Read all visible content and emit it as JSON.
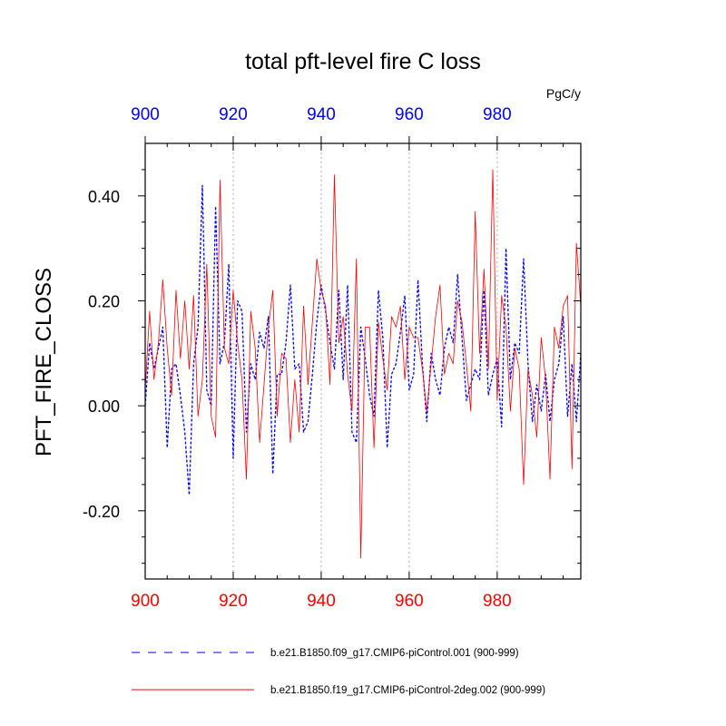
{
  "colors": {
    "series1": "#0000ff",
    "series2": "#ff0000",
    "top_axis": "#0000ff",
    "bottom_axis": "#ff0000",
    "grid": "#b0b0b0"
  },
  "chart_data": {
    "type": "line",
    "title": "total pft-level fire C loss",
    "units": "PgC/y",
    "ylabel": "PFT_FIRE_CLOSS",
    "xlabel": "",
    "xlim": [
      900,
      999
    ],
    "ylim": [
      -0.33,
      0.5
    ],
    "grid": "vertical dotted lines at top-axis ticks",
    "x_ticks": [
      900,
      920,
      940,
      960,
      980
    ],
    "x_tick_labels": [
      "900",
      "920",
      "940",
      "960",
      "980"
    ],
    "top_x_ticks": [
      900,
      920,
      940,
      960,
      980
    ],
    "top_x_tick_labels": [
      "900",
      "920",
      "940",
      "960",
      "980"
    ],
    "y_ticks": [
      0.4,
      0.2,
      0.0,
      -0.2
    ],
    "y_tick_labels": [
      "0.40",
      "0.20",
      "0.00",
      "-0.20"
    ],
    "legend_position": "bottom",
    "series": [
      {
        "name": "b.e21.B1850.f09_g17.CMIP6-piControl.001 (900-999)",
        "style": "dashed",
        "x_start": 900,
        "values": [
          0.0,
          0.12,
          0.07,
          0.11,
          0.15,
          -0.08,
          0.07,
          0.08,
          0.02,
          -0.05,
          -0.17,
          0.08,
          0.15,
          0.42,
          0.03,
          0.0,
          0.38,
          0.08,
          0.12,
          0.27,
          -0.1,
          0.2,
          0.18,
          -0.05,
          0.08,
          0.05,
          0.14,
          0.11,
          0.17,
          -0.13,
          0.06,
          0.06,
          0.12,
          0.23,
          0.07,
          0.08,
          -0.05,
          -0.03,
          0.06,
          0.16,
          0.23,
          0.18,
          0.12,
          0.07,
          0.22,
          0.05,
          0.23,
          -0.05,
          -0.07,
          0.15,
          0.09,
          0.02,
          -0.02,
          0.22,
          0.13,
          -0.08,
          0.06,
          0.08,
          0.14,
          0.21,
          0.03,
          0.06,
          0.24,
          0.08,
          -0.03,
          0.1,
          0.05,
          0.02,
          0.11,
          0.15,
          0.12,
          0.25,
          0.13,
          0.01,
          0.04,
          0.07,
          0.05,
          0.22,
          0.02,
          0.06,
          0.09,
          -0.04,
          0.3,
          0.05,
          0.12,
          0.1,
          0.28,
          0.08,
          -0.03,
          0.04,
          -0.01,
          0.06,
          -0.03,
          0.05,
          0.08,
          0.17,
          -0.02,
          0.08,
          -0.03,
          0.1
        ]
      },
      {
        "name": "b.e21.B1850.f19_g17.CMIP6-piControl-2deg.002 (900-999)",
        "style": "solid",
        "x_start": 900,
        "values": [
          0.03,
          0.18,
          0.05,
          0.12,
          0.24,
          0.11,
          0.02,
          0.22,
          0.09,
          0.2,
          0.07,
          0.21,
          -0.02,
          0.05,
          0.27,
          -0.02,
          -0.06,
          0.43,
          0.11,
          0.08,
          0.22,
          0.12,
          0.05,
          -0.14,
          0.18,
          0.11,
          -0.07,
          0.04,
          0.15,
          0.22,
          -0.02,
          0.1,
          0.09,
          -0.07,
          0.05,
          -0.05,
          0.19,
          0.04,
          0.16,
          0.28,
          0.22,
          0.19,
          0.04,
          0.44,
          0.12,
          0.17,
          0.06,
          -0.01,
          0.28,
          -0.29,
          0.15,
          0.15,
          -0.08,
          0.16,
          0.09,
          0.03,
          0.17,
          0.15,
          0.19,
          0.05,
          0.15,
          0.13,
          0.13,
          0.07,
          -0.01,
          0.08,
          0.17,
          0.23,
          0.06,
          0.1,
          0.08,
          0.2,
          0.16,
          0.08,
          -0.01,
          0.37,
          0.1,
          0.26,
          0.07,
          0.45,
          0.01,
          0.21,
          0.15,
          -0.01,
          0.11,
          0.07,
          -0.15,
          0.07,
          0.02,
          -0.06,
          0.13,
          0.05,
          -0.14,
          0.15,
          0.11,
          0.19,
          0.21,
          -0.12,
          0.31,
          0.19
        ]
      }
    ]
  }
}
